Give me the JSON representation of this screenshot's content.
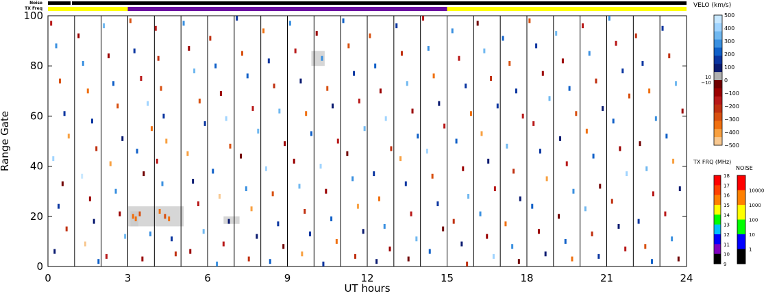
{
  "chart_data": {
    "type": "scatter",
    "subtype": "range-time velocity plot",
    "xlabel": "UT hours",
    "ylabel": "Range Gate",
    "xlim": [
      0,
      24
    ],
    "ylim": [
      0,
      100
    ],
    "x_ticks": [
      0,
      3,
      6,
      9,
      12,
      15,
      18,
      21,
      24
    ],
    "y_ticks": [
      0,
      20,
      40,
      60,
      80,
      100
    ],
    "grid": false,
    "scan_boundaries_hours": [
      1,
      2,
      3,
      4,
      5,
      6,
      7,
      8,
      9,
      10,
      11,
      12,
      13,
      14,
      15,
      16,
      17,
      18,
      19,
      20,
      21,
      22,
      23
    ],
    "noise_bar_label": "Noise",
    "txfreq_bar_label": "TX Freq",
    "tx_freq_segments": [
      {
        "start": 0,
        "end": 3,
        "color": "#ffff00"
      },
      {
        "start": 3,
        "end": 15,
        "color": "#6a0fa0"
      },
      {
        "start": 15,
        "end": 24,
        "color": "#ffff00"
      }
    ],
    "noise_segments": [
      {
        "start": 0,
        "end": 0.85,
        "color": "#000000"
      },
      {
        "start": 0.9,
        "end": 24,
        "color": "#000000"
      }
    ],
    "ground_scatter_regions": [
      {
        "x0": 3.0,
        "x1": 5.1,
        "y0": 16,
        "y1": 24
      },
      {
        "x0": 3.1,
        "x1": 3.4,
        "y0": 16,
        "y1": 22
      },
      {
        "x0": 6.6,
        "x1": 7.2,
        "y0": 17,
        "y1": 20
      },
      {
        "x0": 9.9,
        "x1": 10.4,
        "y0": 80,
        "y1": 86
      }
    ],
    "velocity_colorbar": {
      "label": "VELO (km/s)",
      "ticks": [
        "500",
        "400",
        "300",
        "200",
        "100",
        "0",
        "−100",
        "−200",
        "−300",
        "−400",
        "−500"
      ],
      "small_labels": [
        "10",
        "−10"
      ],
      "colors": [
        "#c8e8ff",
        "#a0d4ff",
        "#70b8f0",
        "#3a90e0",
        "#1060c8",
        "#0a35a0",
        "#0a1a70",
        "#b0b0b0",
        "#700000",
        "#9a0000",
        "#b81818",
        "#c03010",
        "#d85010",
        "#f07010",
        "#f8a040",
        "#f8c890"
      ]
    },
    "txfreq_colorbar": {
      "label": "TX FRQ (MHz)",
      "ticks": [
        "18",
        "17",
        "16",
        "15",
        "14",
        "13",
        "12",
        "11",
        "10",
        "9"
      ],
      "colors": [
        "#ff0000",
        "#ff4000",
        "#ff8000",
        "#ffff00",
        "#00ff00",
        "#00c0ff",
        "#0000ff",
        "#8000c0",
        "#000000"
      ]
    },
    "noise_colorbar": {
      "label": "NOISE",
      "ticks": [
        "10000",
        "1000",
        "100",
        "10",
        "1"
      ],
      "colors": [
        "#ff0000",
        "#ff8000",
        "#ffff00",
        "#00ff00",
        "#0000ff",
        "#000000"
      ]
    },
    "scatter_points": [
      [
        0.12,
        97,
        -150
      ],
      [
        0.31,
        88,
        220
      ],
      [
        0.45,
        74,
        -310
      ],
      [
        0.62,
        61,
        90
      ],
      [
        0.78,
        52,
        -420
      ],
      [
        0.2,
        43,
        380
      ],
      [
        0.55,
        33,
        -60
      ],
      [
        0.4,
        24,
        140
      ],
      [
        0.7,
        15,
        -240
      ],
      [
        0.25,
        6,
        30
      ],
      [
        1.15,
        92,
        -80
      ],
      [
        1.32,
        81,
        260
      ],
      [
        1.5,
        70,
        -350
      ],
      [
        1.66,
        58,
        120
      ],
      [
        1.82,
        47,
        -200
      ],
      [
        1.28,
        36,
        430
      ],
      [
        1.58,
        27,
        -120
      ],
      [
        1.73,
        18,
        60
      ],
      [
        1.4,
        9,
        -460
      ],
      [
        1.9,
        2,
        200
      ],
      [
        2.1,
        96,
        310
      ],
      [
        2.28,
        84,
        -110
      ],
      [
        2.46,
        73,
        170
      ],
      [
        2.62,
        64,
        -280
      ],
      [
        2.8,
        51,
        40
      ],
      [
        2.35,
        41,
        -390
      ],
      [
        2.55,
        30,
        250
      ],
      [
        2.7,
        21,
        -70
      ],
      [
        2.9,
        12,
        330
      ],
      [
        2.2,
        4,
        -180
      ],
      [
        3.1,
        98,
        -260
      ],
      [
        3.25,
        86,
        90
      ],
      [
        3.5,
        75,
        -140
      ],
      [
        3.75,
        65,
        410
      ],
      [
        3.9,
        55,
        -330
      ],
      [
        3.35,
        46,
        150
      ],
      [
        3.6,
        37,
        -20
      ],
      [
        3.2,
        20,
        -320
      ],
      [
        3.3,
        19,
        -350
      ],
      [
        3.45,
        21,
        -280
      ],
      [
        3.85,
        13,
        220
      ],
      [
        3.55,
        3,
        -90
      ],
      [
        4.05,
        95,
        -180
      ],
      [
        4.15,
        83,
        -240
      ],
      [
        4.25,
        71,
        -300
      ],
      [
        4.35,
        60,
        130
      ],
      [
        4.45,
        50,
        -410
      ],
      [
        4.1,
        42,
        -160
      ],
      [
        4.3,
        33,
        270
      ],
      [
        4.2,
        22,
        -330
      ],
      [
        4.4,
        20,
        -290
      ],
      [
        4.55,
        19,
        -360
      ],
      [
        4.65,
        11,
        80
      ],
      [
        4.8,
        5,
        -200
      ],
      [
        5.1,
        97,
        220
      ],
      [
        5.3,
        87,
        -120
      ],
      [
        5.5,
        78,
        340
      ],
      [
        5.7,
        66,
        -260
      ],
      [
        5.9,
        57,
        110
      ],
      [
        5.25,
        45,
        -380
      ],
      [
        5.45,
        34,
        60
      ],
      [
        5.65,
        25,
        -150
      ],
      [
        5.85,
        14,
        290
      ],
      [
        5.35,
        6,
        -70
      ],
      [
        6.1,
        91,
        -230
      ],
      [
        6.3,
        80,
        150
      ],
      [
        6.5,
        69,
        -90
      ],
      [
        6.7,
        59,
        380
      ],
      [
        6.85,
        48,
        -310
      ],
      [
        6.2,
        38,
        200
      ],
      [
        6.45,
        28,
        -440
      ],
      [
        6.8,
        18,
        30
      ],
      [
        6.6,
        9,
        -170
      ],
      [
        6.35,
        1,
        260
      ],
      [
        7.1,
        99,
        110
      ],
      [
        7.3,
        85,
        -270
      ],
      [
        7.5,
        76,
        190
      ],
      [
        7.7,
        63,
        -130
      ],
      [
        7.9,
        54,
        350
      ],
      [
        7.25,
        44,
        -50
      ],
      [
        7.45,
        31,
        240
      ],
      [
        7.65,
        23,
        -400
      ],
      [
        7.85,
        12,
        70
      ],
      [
        7.55,
        3,
        -220
      ],
      [
        8.1,
        94,
        -340
      ],
      [
        8.3,
        82,
        80
      ],
      [
        8.5,
        72,
        -190
      ],
      [
        8.7,
        62,
        300
      ],
      [
        8.9,
        49,
        -110
      ],
      [
        8.2,
        39,
        420
      ],
      [
        8.45,
        29,
        -280
      ],
      [
        8.65,
        17,
        140
      ],
      [
        8.85,
        8,
        -60
      ],
      [
        8.35,
        2,
        190
      ],
      [
        9.1,
        97,
        250
      ],
      [
        9.3,
        86,
        -160
      ],
      [
        9.5,
        74,
        60
      ],
      [
        9.7,
        61,
        -370
      ],
      [
        9.9,
        53,
        180
      ],
      [
        9.25,
        42,
        -90
      ],
      [
        9.45,
        32,
        320
      ],
      [
        9.65,
        22,
        -240
      ],
      [
        9.85,
        13,
        100
      ],
      [
        9.55,
        5,
        -410
      ],
      [
        10.1,
        93,
        -120
      ],
      [
        10.3,
        83,
        270
      ],
      [
        10.5,
        71,
        -300
      ],
      [
        10.7,
        64,
        40
      ],
      [
        10.9,
        50,
        -180
      ],
      [
        10.25,
        40,
        360
      ],
      [
        10.45,
        30,
        -70
      ],
      [
        10.65,
        19,
        210
      ],
      [
        10.85,
        10,
        -330
      ],
      [
        10.35,
        1,
        120
      ],
      [
        11.1,
        98,
        190
      ],
      [
        11.3,
        88,
        -250
      ],
      [
        11.5,
        77,
        90
      ],
      [
        11.7,
        66,
        -140
      ],
      [
        11.9,
        55,
        310
      ],
      [
        11.25,
        45,
        -60
      ],
      [
        11.45,
        35,
        230
      ],
      [
        11.65,
        24,
        -380
      ],
      [
        11.85,
        14,
        50
      ],
      [
        11.55,
        4,
        -200
      ],
      [
        12.1,
        92,
        -300
      ],
      [
        12.3,
        80,
        160
      ],
      [
        12.5,
        70,
        -80
      ],
      [
        12.7,
        59,
        400
      ],
      [
        12.9,
        47,
        -220
      ],
      [
        12.25,
        37,
        110
      ],
      [
        12.45,
        27,
        -350
      ],
      [
        12.65,
        16,
        260
      ],
      [
        12.85,
        7,
        -120
      ],
      [
        12.35,
        2,
        30
      ],
      [
        13.1,
        96,
        140
      ],
      [
        13.3,
        85,
        -210
      ],
      [
        13.5,
        73,
        330
      ],
      [
        13.7,
        62,
        -90
      ],
      [
        13.9,
        52,
        170
      ],
      [
        13.25,
        43,
        -420
      ],
      [
        13.45,
        33,
        80
      ],
      [
        13.65,
        21,
        -160
      ],
      [
        13.85,
        11,
        290
      ],
      [
        13.55,
        3,
        -60
      ],
      [
        14.1,
        99,
        -170
      ],
      [
        14.3,
        87,
        240
      ],
      [
        14.5,
        76,
        -320
      ],
      [
        14.7,
        65,
        60
      ],
      [
        14.9,
        56,
        -140
      ],
      [
        14.25,
        46,
        380
      ],
      [
        14.45,
        36,
        -260
      ],
      [
        14.65,
        25,
        120
      ],
      [
        14.85,
        15,
        -30
      ],
      [
        14.35,
        6,
        210
      ],
      [
        15.2,
        94,
        280
      ],
      [
        15.45,
        83,
        -150
      ],
      [
        15.7,
        72,
        110
      ],
      [
        15.9,
        61,
        -360
      ],
      [
        15.35,
        50,
        190
      ],
      [
        15.6,
        39,
        -80
      ],
      [
        15.8,
        28,
        340
      ],
      [
        15.25,
        18,
        -240
      ],
      [
        15.55,
        9,
        70
      ],
      [
        15.75,
        1,
        -190
      ],
      [
        16.15,
        97,
        -60
      ],
      [
        16.4,
        86,
        300
      ],
      [
        16.65,
        75,
        -230
      ],
      [
        16.9,
        64,
        130
      ],
      [
        16.3,
        53,
        -400
      ],
      [
        16.55,
        42,
        50
      ],
      [
        16.8,
        31,
        -170
      ],
      [
        16.25,
        21,
        260
      ],
      [
        16.5,
        12,
        -100
      ],
      [
        16.75,
        4,
        380
      ],
      [
        17.1,
        91,
        170
      ],
      [
        17.35,
        81,
        -290
      ],
      [
        17.6,
        70,
        80
      ],
      [
        17.85,
        60,
        -130
      ],
      [
        17.25,
        48,
        350
      ],
      [
        17.5,
        38,
        -210
      ],
      [
        17.75,
        27,
        20
      ],
      [
        17.2,
        17,
        -340
      ],
      [
        17.45,
        8,
        240
      ],
      [
        17.7,
        2,
        -50
      ],
      [
        18.1,
        98,
        -250
      ],
      [
        18.35,
        88,
        120
      ],
      [
        18.6,
        77,
        -70
      ],
      [
        18.85,
        67,
        310
      ],
      [
        18.25,
        57,
        -180
      ],
      [
        18.5,
        46,
        90
      ],
      [
        18.75,
        35,
        -400
      ],
      [
        18.2,
        24,
        210
      ],
      [
        18.45,
        14,
        -120
      ],
      [
        18.7,
        5,
        40
      ],
      [
        19.1,
        93,
        330
      ],
      [
        19.35,
        82,
        -100
      ],
      [
        19.6,
        71,
        200
      ],
      [
        19.85,
        61,
        -310
      ],
      [
        19.25,
        51,
        60
      ],
      [
        19.5,
        41,
        -160
      ],
      [
        19.75,
        30,
        280
      ],
      [
        19.2,
        20,
        -60
      ],
      [
        19.45,
        10,
        150
      ],
      [
        19.7,
        3,
        -370
      ],
      [
        20.1,
        96,
        -130
      ],
      [
        20.35,
        85,
        260
      ],
      [
        20.6,
        74,
        -210
      ],
      [
        20.85,
        63,
        70
      ],
      [
        20.25,
        54,
        -330
      ],
      [
        20.5,
        44,
        180
      ],
      [
        20.75,
        32,
        -40
      ],
      [
        20.2,
        23,
        310
      ],
      [
        20.45,
        13,
        -240
      ],
      [
        20.7,
        4,
        100
      ],
      [
        21.1,
        99,
        220
      ],
      [
        21.35,
        89,
        -160
      ],
      [
        21.6,
        78,
        90
      ],
      [
        21.85,
        68,
        -300
      ],
      [
        21.25,
        58,
        150
      ],
      [
        21.5,
        47,
        -80
      ],
      [
        21.75,
        37,
        360
      ],
      [
        21.2,
        26,
        -200
      ],
      [
        21.45,
        16,
        50
      ],
      [
        21.7,
        7,
        -140
      ],
      [
        22.1,
        92,
        -210
      ],
      [
        22.35,
        81,
        140
      ],
      [
        22.6,
        70,
        -350
      ],
      [
        22.85,
        59,
        230
      ],
      [
        22.25,
        49,
        -60
      ],
      [
        22.5,
        39,
        290
      ],
      [
        22.75,
        29,
        -170
      ],
      [
        22.2,
        18,
        80
      ],
      [
        22.45,
        8,
        -290
      ],
      [
        22.7,
        2,
        170
      ],
      [
        23.1,
        95,
        110
      ],
      [
        23.35,
        84,
        -240
      ],
      [
        23.6,
        73,
        300
      ],
      [
        23.85,
        62,
        -90
      ],
      [
        23.25,
        52,
        200
      ],
      [
        23.5,
        42,
        -380
      ],
      [
        23.75,
        31,
        60
      ],
      [
        23.2,
        21,
        -150
      ],
      [
        23.45,
        11,
        240
      ],
      [
        23.7,
        3,
        -30
      ]
    ]
  }
}
